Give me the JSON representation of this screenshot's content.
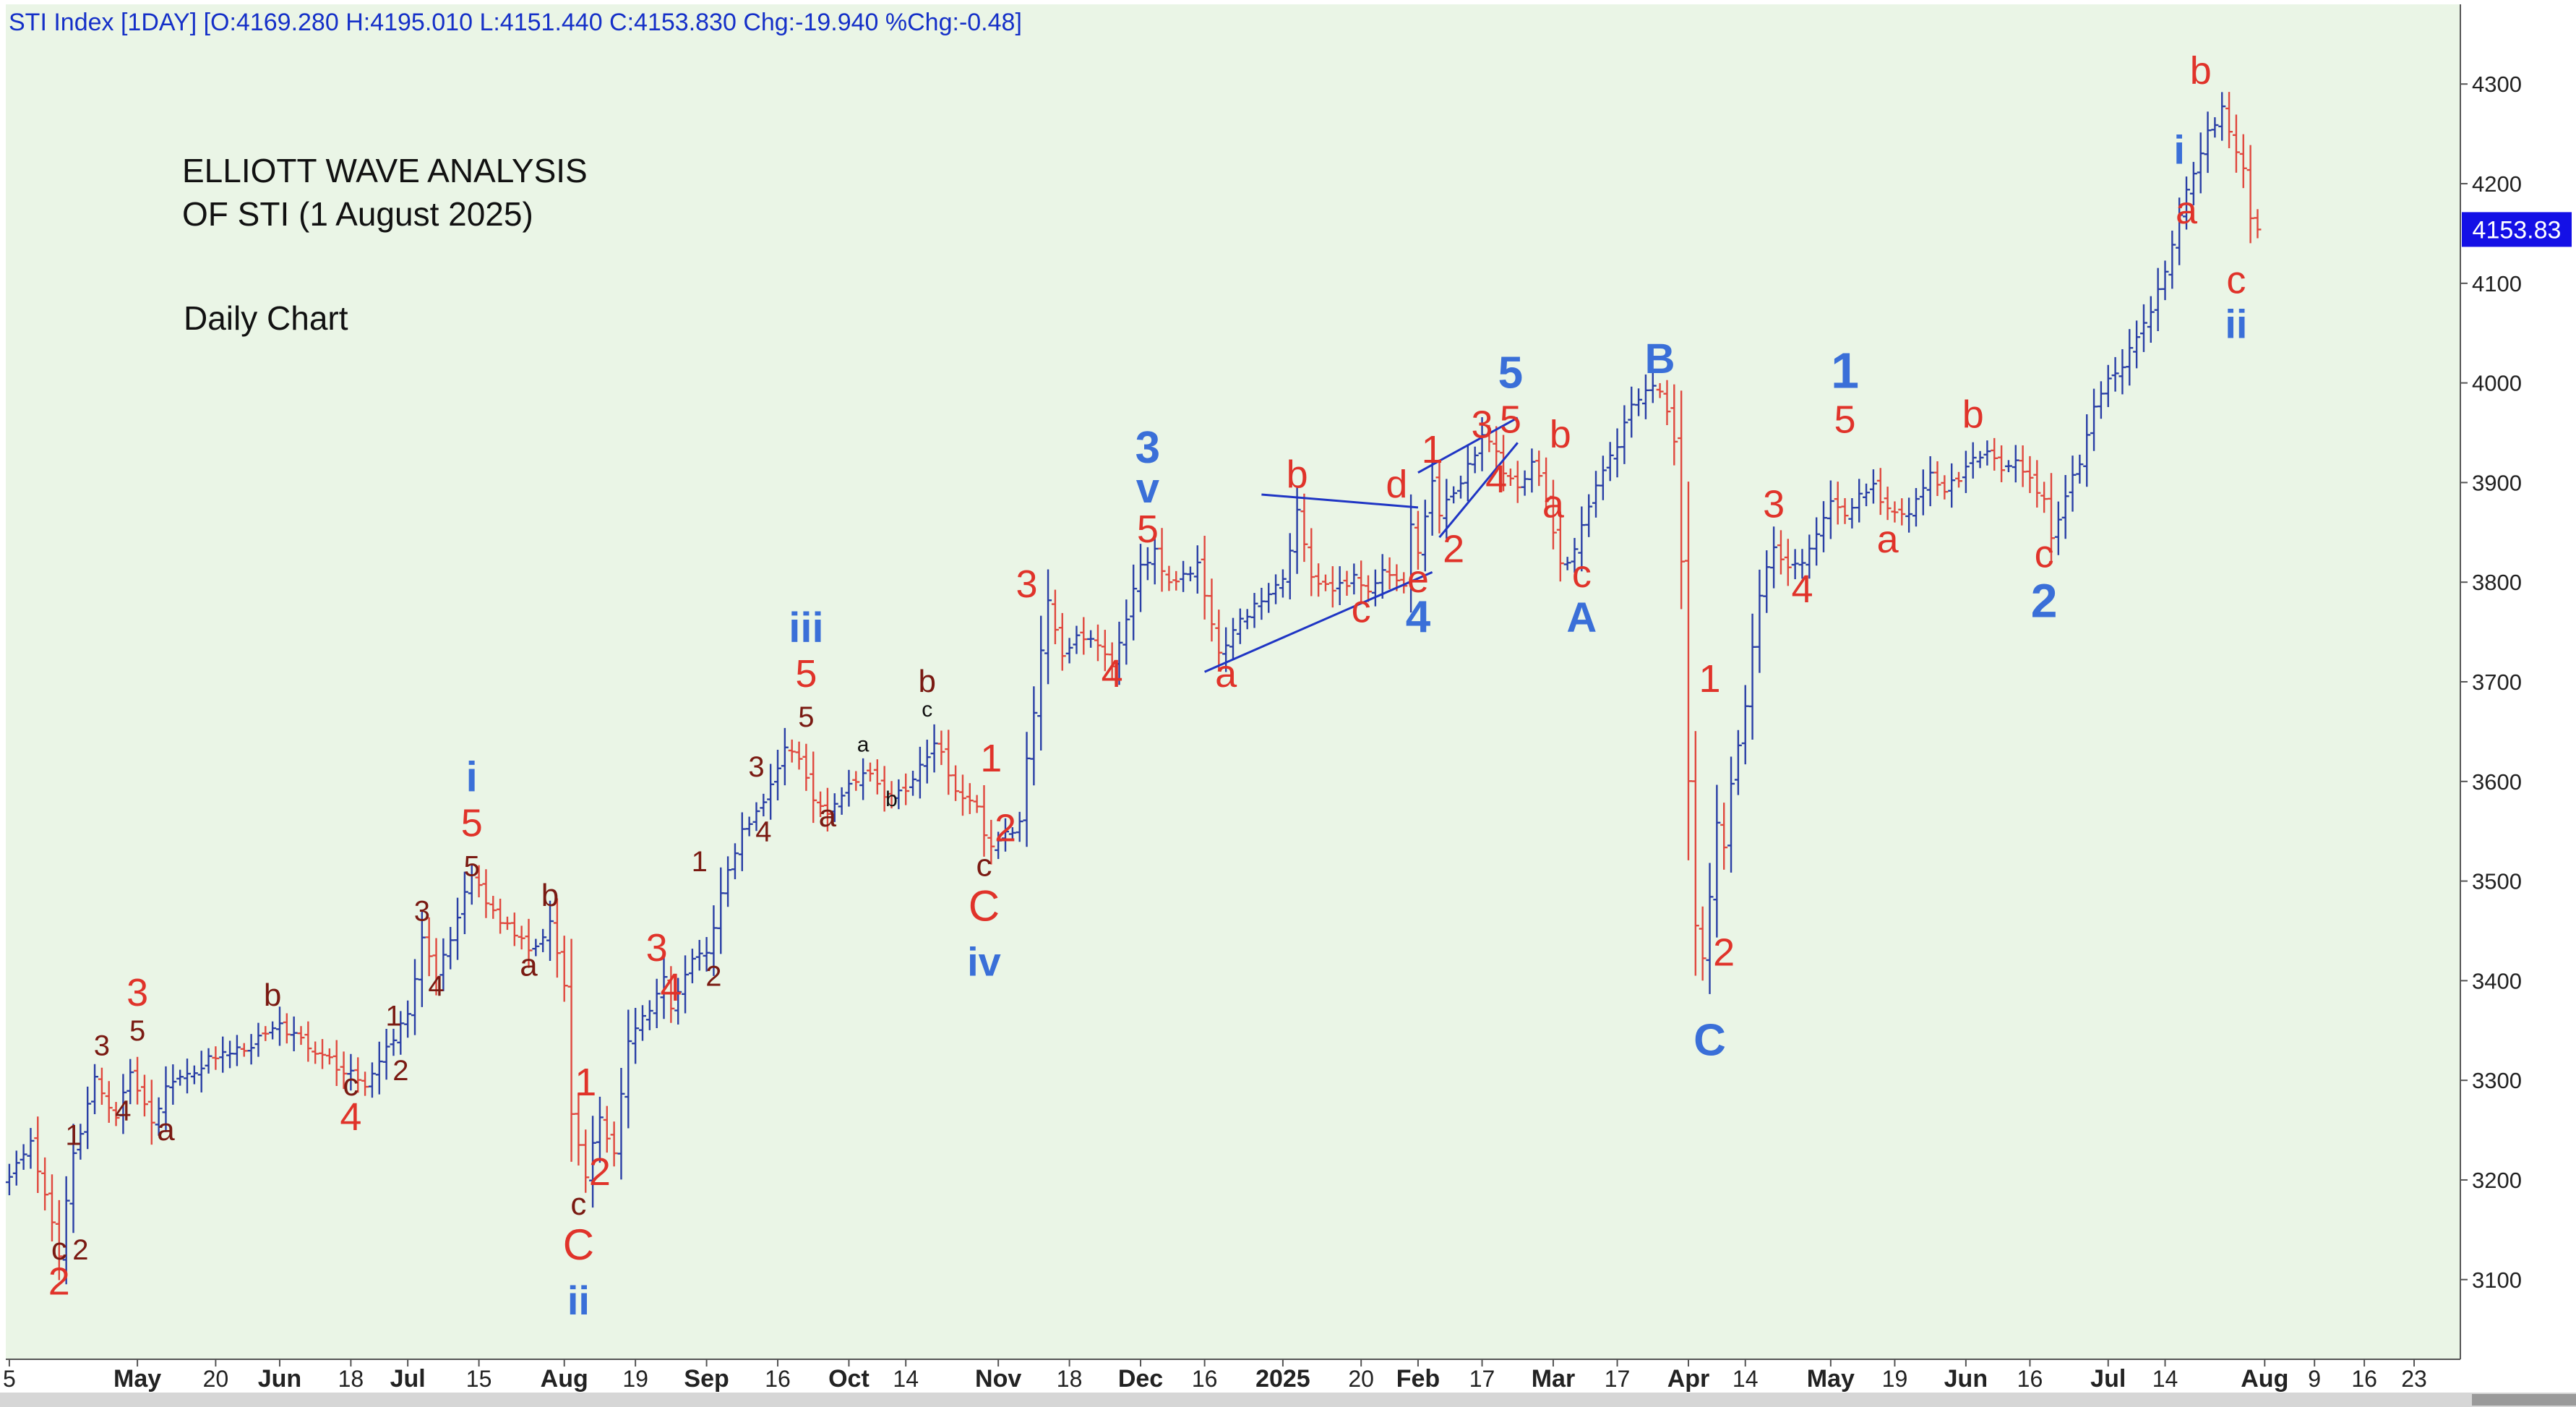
{
  "header": {
    "ohlc_text": "STI Index [1DAY] [O:4169.280 H:4195.010 L:4151.440 C:4153.830 Chg:-19.940 %Chg:-0.48]"
  },
  "title": {
    "line1": "ELLIOTT WAVE ANALYSIS",
    "line2": "OF STI (1 August 2025)",
    "line3": "Daily Chart"
  },
  "last_price_label": "4153.83",
  "colors": {
    "plot_bg": "#eaf5e6",
    "up_bar": "#2a3fa6",
    "down_bar": "#e0483e",
    "primary_blue": "#3a6fd8",
    "red": "#e0332a",
    "dark_red": "#7a1a12",
    "black": "#111111",
    "price_tag": "#1410e6"
  },
  "chart_data": {
    "type": "ohlc",
    "symbol": "STI Index",
    "interval": "1DAY",
    "ylim": [
      3020,
      4380
    ],
    "y_ticks": [
      3100,
      3200,
      3300,
      3400,
      3500,
      3600,
      3700,
      3800,
      3900,
      4000,
      4100,
      4200,
      4300
    ],
    "x_ticks": [
      {
        "label": "5",
        "x": 0,
        "bold": false
      },
      {
        "label": "May",
        "x": 18,
        "bold": true
      },
      {
        "label": "20",
        "x": 29,
        "bold": false
      },
      {
        "label": "Jun",
        "x": 38,
        "bold": true
      },
      {
        "label": "18",
        "x": 48,
        "bold": false
      },
      {
        "label": "Jul",
        "x": 56,
        "bold": true
      },
      {
        "label": "15",
        "x": 66,
        "bold": false
      },
      {
        "label": "Aug",
        "x": 78,
        "bold": true
      },
      {
        "label": "19",
        "x": 88,
        "bold": false
      },
      {
        "label": "Sep",
        "x": 98,
        "bold": true
      },
      {
        "label": "16",
        "x": 108,
        "bold": false
      },
      {
        "label": "Oct",
        "x": 118,
        "bold": true
      },
      {
        "label": "14",
        "x": 126,
        "bold": false
      },
      {
        "label": "Nov",
        "x": 139,
        "bold": true
      },
      {
        "label": "18",
        "x": 149,
        "bold": false
      },
      {
        "label": "Dec",
        "x": 159,
        "bold": true
      },
      {
        "label": "16",
        "x": 168,
        "bold": false
      },
      {
        "label": "2025",
        "x": 179,
        "bold": true
      },
      {
        "label": "20",
        "x": 190,
        "bold": false
      },
      {
        "label": "Feb",
        "x": 198,
        "bold": true
      },
      {
        "label": "17",
        "x": 207,
        "bold": false
      },
      {
        "label": "Mar",
        "x": 217,
        "bold": true
      },
      {
        "label": "17",
        "x": 226,
        "bold": false
      },
      {
        "label": "Apr",
        "x": 236,
        "bold": true
      },
      {
        "label": "14",
        "x": 244,
        "bold": false
      },
      {
        "label": "May",
        "x": 256,
        "bold": true
      },
      {
        "label": "19",
        "x": 265,
        "bold": false
      },
      {
        "label": "Jun",
        "x": 275,
        "bold": true
      },
      {
        "label": "16",
        "x": 284,
        "bold": false
      },
      {
        "label": "Jul",
        "x": 295,
        "bold": true
      },
      {
        "label": "14",
        "x": 303,
        "bold": false
      },
      {
        "label": "Aug",
        "x": 317,
        "bold": true
      },
      {
        "label": "9",
        "x": 324,
        "bold": false
      },
      {
        "label": "16",
        "x": 331,
        "bold": false
      },
      {
        "label": "23",
        "x": 338,
        "bold": false
      }
    ],
    "x_range": [
      -0.5,
      344.5
    ],
    "price_path": [
      [
        0,
        3200
      ],
      [
        3,
        3240
      ],
      [
        5,
        3185
      ],
      [
        7,
        3125
      ],
      [
        9,
        3225
      ],
      [
        12,
        3300
      ],
      [
        15,
        3265
      ],
      [
        17,
        3310
      ],
      [
        20,
        3255
      ],
      [
        22,
        3290
      ],
      [
        28,
        3320
      ],
      [
        34,
        3335
      ],
      [
        38,
        3355
      ],
      [
        43,
        3330
      ],
      [
        47,
        3310
      ],
      [
        50,
        3295
      ],
      [
        53,
        3330
      ],
      [
        56,
        3365
      ],
      [
        58,
        3440
      ],
      [
        60,
        3405
      ],
      [
        62,
        3445
      ],
      [
        65,
        3505
      ],
      [
        68,
        3470
      ],
      [
        70,
        3455
      ],
      [
        73,
        3430
      ],
      [
        76,
        3455
      ],
      [
        78,
        3400
      ],
      [
        79,
        3270
      ],
      [
        81,
        3205
      ],
      [
        83,
        3260
      ],
      [
        85,
        3230
      ],
      [
        87,
        3340
      ],
      [
        90,
        3370
      ],
      [
        92,
        3400
      ],
      [
        93,
        3375
      ],
      [
        96,
        3420
      ],
      [
        98,
        3430
      ],
      [
        101,
        3510
      ],
      [
        103,
        3550
      ],
      [
        106,
        3575
      ],
      [
        109,
        3635
      ],
      [
        111,
        3620
      ],
      [
        113,
        3580
      ],
      [
        115,
        3565
      ],
      [
        118,
        3595
      ],
      [
        121,
        3610
      ],
      [
        123,
        3580
      ],
      [
        127,
        3600
      ],
      [
        130,
        3640
      ],
      [
        133,
        3595
      ],
      [
        136,
        3570
      ],
      [
        138,
        3530
      ],
      [
        140,
        3545
      ],
      [
        142,
        3560
      ],
      [
        143,
        3620
      ],
      [
        146,
        3780
      ],
      [
        148,
        3725
      ],
      [
        150,
        3745
      ],
      [
        153,
        3735
      ],
      [
        155,
        3715
      ],
      [
        157,
        3765
      ],
      [
        159,
        3815
      ],
      [
        161,
        3830
      ],
      [
        163,
        3800
      ],
      [
        165,
        3810
      ],
      [
        167,
        3815
      ],
      [
        170,
        3725
      ],
      [
        173,
        3760
      ],
      [
        176,
        3785
      ],
      [
        179,
        3800
      ],
      [
        181,
        3870
      ],
      [
        183,
        3810
      ],
      [
        186,
        3790
      ],
      [
        189,
        3805
      ],
      [
        191,
        3790
      ],
      [
        193,
        3815
      ],
      [
        196,
        3800
      ],
      [
        197,
        3860
      ],
      [
        198,
        3830
      ],
      [
        200,
        3905
      ],
      [
        201,
        3870
      ],
      [
        203,
        3890
      ],
      [
        205,
        3915
      ],
      [
        207,
        3945
      ],
      [
        209,
        3930
      ],
      [
        210,
        3905
      ],
      [
        212,
        3895
      ],
      [
        214,
        3920
      ],
      [
        216,
        3885
      ],
      [
        218,
        3815
      ],
      [
        220,
        3830
      ],
      [
        222,
        3880
      ],
      [
        224,
        3915
      ],
      [
        226,
        3940
      ],
      [
        228,
        3975
      ],
      [
        230,
        3995
      ],
      [
        232,
        3990
      ],
      [
        234,
        3945
      ],
      [
        235,
        3820
      ],
      [
        236,
        3600
      ],
      [
        237,
        3460
      ],
      [
        238,
        3420
      ],
      [
        239,
        3480
      ],
      [
        240,
        3560
      ],
      [
        241,
        3530
      ],
      [
        242,
        3600
      ],
      [
        244,
        3680
      ],
      [
        246,
        3790
      ],
      [
        248,
        3840
      ],
      [
        250,
        3810
      ],
      [
        252,
        3820
      ],
      [
        254,
        3850
      ],
      [
        256,
        3880
      ],
      [
        258,
        3870
      ],
      [
        260,
        3885
      ],
      [
        262,
        3895
      ],
      [
        264,
        3875
      ],
      [
        266,
        3865
      ],
      [
        268,
        3880
      ],
      [
        270,
        3905
      ],
      [
        272,
        3890
      ],
      [
        274,
        3905
      ],
      [
        276,
        3925
      ],
      [
        278,
        3935
      ],
      [
        280,
        3915
      ],
      [
        282,
        3920
      ],
      [
        284,
        3900
      ],
      [
        286,
        3880
      ],
      [
        287,
        3840
      ],
      [
        289,
        3890
      ],
      [
        291,
        3920
      ],
      [
        293,
        3975
      ],
      [
        295,
        4000
      ],
      [
        297,
        4020
      ],
      [
        299,
        4045
      ],
      [
        301,
        4075
      ],
      [
        303,
        4110
      ],
      [
        305,
        4170
      ],
      [
        307,
        4210
      ],
      [
        309,
        4250
      ],
      [
        311,
        4275
      ],
      [
        312,
        4250
      ],
      [
        314,
        4215
      ],
      [
        315,
        4170
      ],
      [
        316,
        4154
      ]
    ]
  },
  "wave_labels": [
    {
      "text": "2",
      "x": 7,
      "y": 3085,
      "color": "red",
      "size": 54
    },
    {
      "text": "c",
      "x": 7,
      "y": 3120,
      "color": "dark_red",
      "size": 44
    },
    {
      "text": "1",
      "x": 9,
      "y": 3235,
      "color": "dark_red",
      "size": 40
    },
    {
      "text": "2",
      "x": 10,
      "y": 3120,
      "color": "dark_red",
      "size": 40
    },
    {
      "text": "3",
      "x": 13,
      "y": 3325,
      "color": "dark_red",
      "size": 40
    },
    {
      "text": "4",
      "x": 16,
      "y": 3260,
      "color": "dark_red",
      "size": 40
    },
    {
      "text": "3",
      "x": 18,
      "y": 3375,
      "color": "red",
      "size": 54
    },
    {
      "text": "5",
      "x": 18,
      "y": 3340,
      "color": "dark_red",
      "size": 40
    },
    {
      "text": "a",
      "x": 22,
      "y": 3240,
      "color": "dark_red",
      "size": 44
    },
    {
      "text": "b",
      "x": 37,
      "y": 3375,
      "color": "dark_red",
      "size": 44
    },
    {
      "text": "c",
      "x": 48,
      "y": 3285,
      "color": "dark_red",
      "size": 44
    },
    {
      "text": "4",
      "x": 48,
      "y": 3250,
      "color": "red",
      "size": 54
    },
    {
      "text": "1",
      "x": 54,
      "y": 3355,
      "color": "dark_red",
      "size": 40
    },
    {
      "text": "2",
      "x": 55,
      "y": 3300,
      "color": "dark_red",
      "size": 40
    },
    {
      "text": "3",
      "x": 58,
      "y": 3460,
      "color": "dark_red",
      "size": 40
    },
    {
      "text": "4",
      "x": 60,
      "y": 3385,
      "color": "dark_red",
      "size": 40
    },
    {
      "text": "i",
      "x": 65,
      "y": 3590,
      "color": "primary_blue",
      "size": 58
    },
    {
      "text": "5",
      "x": 65,
      "y": 3545,
      "color": "red",
      "size": 54
    },
    {
      "text": "5",
      "x": 65,
      "y": 3505,
      "color": "dark_red",
      "size": 40
    },
    {
      "text": "b",
      "x": 76,
      "y": 3475,
      "color": "dark_red",
      "size": 44
    },
    {
      "text": "a",
      "x": 73,
      "y": 3405,
      "color": "dark_red",
      "size": 44
    },
    {
      "text": "1",
      "x": 81,
      "y": 3285,
      "color": "red",
      "size": 54
    },
    {
      "text": "2",
      "x": 83,
      "y": 3195,
      "color": "red",
      "size": 54
    },
    {
      "text": "c",
      "x": 80,
      "y": 3165,
      "color": "dark_red",
      "size": 44
    },
    {
      "text": "C",
      "x": 80,
      "y": 3120,
      "color": "red",
      "size": 60
    },
    {
      "text": "ii",
      "x": 80,
      "y": 3065,
      "color": "primary_blue",
      "size": 56
    },
    {
      "text": "3",
      "x": 91,
      "y": 3420,
      "color": "red",
      "size": 54
    },
    {
      "text": "4",
      "x": 93,
      "y": 3380,
      "color": "red",
      "size": 54
    },
    {
      "text": "1",
      "x": 97,
      "y": 3510,
      "color": "dark_red",
      "size": 40
    },
    {
      "text": "2",
      "x": 99,
      "y": 3395,
      "color": "dark_red",
      "size": 40
    },
    {
      "text": "3",
      "x": 105,
      "y": 3605,
      "color": "dark_red",
      "size": 40
    },
    {
      "text": "4",
      "x": 106,
      "y": 3540,
      "color": "dark_red",
      "size": 40
    },
    {
      "text": "iii",
      "x": 112,
      "y": 3740,
      "color": "primary_blue",
      "size": 58
    },
    {
      "text": "5",
      "x": 112,
      "y": 3695,
      "color": "red",
      "size": 54
    },
    {
      "text": "5",
      "x": 112,
      "y": 3655,
      "color": "dark_red",
      "size": 40
    },
    {
      "text": "a",
      "x": 115,
      "y": 3555,
      "color": "dark_red",
      "size": 44
    },
    {
      "text": "a",
      "x": 120,
      "y": 3630,
      "color": "black",
      "size": 30
    },
    {
      "text": "b",
      "x": 124,
      "y": 3575,
      "color": "black",
      "size": 30
    },
    {
      "text": "b",
      "x": 129,
      "y": 3690,
      "color": "dark_red",
      "size": 44
    },
    {
      "text": "c",
      "x": 129,
      "y": 3665,
      "color": "black",
      "size": 30
    },
    {
      "text": "1",
      "x": 138,
      "y": 3610,
      "color": "red",
      "size": 54
    },
    {
      "text": "2",
      "x": 140,
      "y": 3540,
      "color": "red",
      "size": 54
    },
    {
      "text": "c",
      "x": 137,
      "y": 3505,
      "color": "dark_red",
      "size": 44
    },
    {
      "text": "C",
      "x": 137,
      "y": 3460,
      "color": "red",
      "size": 60
    },
    {
      "text": "iv",
      "x": 137,
      "y": 3405,
      "color": "primary_blue",
      "size": 56
    },
    {
      "text": "3",
      "x": 143,
      "y": 3785,
      "color": "red",
      "size": 54
    },
    {
      "text": "4",
      "x": 155,
      "y": 3695,
      "color": "red",
      "size": 54
    },
    {
      "text": "3",
      "x": 160,
      "y": 3920,
      "color": "primary_blue",
      "size": 62
    },
    {
      "text": "v",
      "x": 160,
      "y": 3880,
      "color": "primary_blue",
      "size": 58
    },
    {
      "text": "5",
      "x": 160,
      "y": 3840,
      "color": "red",
      "size": 54
    },
    {
      "text": "a",
      "x": 171,
      "y": 3695,
      "color": "red",
      "size": 54
    },
    {
      "text": "b",
      "x": 181,
      "y": 3895,
      "color": "red",
      "size": 54
    },
    {
      "text": "c",
      "x": 190,
      "y": 3760,
      "color": "red",
      "size": 54
    },
    {
      "text": "d",
      "x": 195,
      "y": 3885,
      "color": "red",
      "size": 54
    },
    {
      "text": "e",
      "x": 198,
      "y": 3790,
      "color": "red",
      "size": 54
    },
    {
      "text": "4",
      "x": 198,
      "y": 3750,
      "color": "primary_blue",
      "size": 62
    },
    {
      "text": "1",
      "x": 200,
      "y": 3920,
      "color": "red",
      "size": 54
    },
    {
      "text": "2",
      "x": 203,
      "y": 3820,
      "color": "red",
      "size": 54
    },
    {
      "text": "3",
      "x": 207,
      "y": 3945,
      "color": "red",
      "size": 54
    },
    {
      "text": "4",
      "x": 209,
      "y": 3890,
      "color": "red",
      "size": 54
    },
    {
      "text": "5",
      "x": 211,
      "y": 3950,
      "color": "red",
      "size": 54
    },
    {
      "text": "5",
      "x": 211,
      "y": 3995,
      "color": "primary_blue",
      "size": 62
    },
    {
      "text": "a",
      "x": 217,
      "y": 3865,
      "color": "red",
      "size": 54
    },
    {
      "text": "b",
      "x": 218,
      "y": 3935,
      "color": "red",
      "size": 54
    },
    {
      "text": "c",
      "x": 221,
      "y": 3795,
      "color": "red",
      "size": 54
    },
    {
      "text": "A",
      "x": 221,
      "y": 3750,
      "color": "primary_blue",
      "size": 58
    },
    {
      "text": "B",
      "x": 232,
      "y": 4010,
      "color": "primary_blue",
      "size": 58
    },
    {
      "text": "1",
      "x": 239,
      "y": 3690,
      "color": "red",
      "size": 54
    },
    {
      "text": "2",
      "x": 241,
      "y": 3415,
      "color": "red",
      "size": 54
    },
    {
      "text": "C",
      "x": 239,
      "y": 3325,
      "color": "primary_blue",
      "size": 62
    },
    {
      "text": "3",
      "x": 248,
      "y": 3865,
      "color": "red",
      "size": 54
    },
    {
      "text": "4",
      "x": 252,
      "y": 3780,
      "color": "red",
      "size": 54
    },
    {
      "text": "1",
      "x": 258,
      "y": 3995,
      "color": "primary_blue",
      "size": 70
    },
    {
      "text": "5",
      "x": 258,
      "y": 3950,
      "color": "red",
      "size": 54
    },
    {
      "text": "a",
      "x": 264,
      "y": 3830,
      "color": "red",
      "size": 54
    },
    {
      "text": "b",
      "x": 276,
      "y": 3955,
      "color": "red",
      "size": 54
    },
    {
      "text": "c",
      "x": 286,
      "y": 3815,
      "color": "red",
      "size": 54
    },
    {
      "text": "2",
      "x": 286,
      "y": 3765,
      "color": "primary_blue",
      "size": 66
    },
    {
      "text": "i",
      "x": 305,
      "y": 4220,
      "color": "primary_blue",
      "size": 56
    },
    {
      "text": "a",
      "x": 306,
      "y": 4160,
      "color": "red",
      "size": 54
    },
    {
      "text": "b",
      "x": 308,
      "y": 4300,
      "color": "red",
      "size": 54
    },
    {
      "text": "c",
      "x": 313,
      "y": 4090,
      "color": "red",
      "size": 54
    },
    {
      "text": "ii",
      "x": 313,
      "y": 4045,
      "color": "primary_blue",
      "size": 56
    }
  ],
  "trendlines": [
    {
      "x1": 168,
      "y1": 3710,
      "x2": 200,
      "y2": 3810
    },
    {
      "x1": 176,
      "y1": 3888,
      "x2": 198,
      "y2": 3875
    },
    {
      "x1": 198,
      "y1": 3910,
      "x2": 212,
      "y2": 3965
    },
    {
      "x1": 201,
      "y1": 3845,
      "x2": 212,
      "y2": 3940
    }
  ]
}
